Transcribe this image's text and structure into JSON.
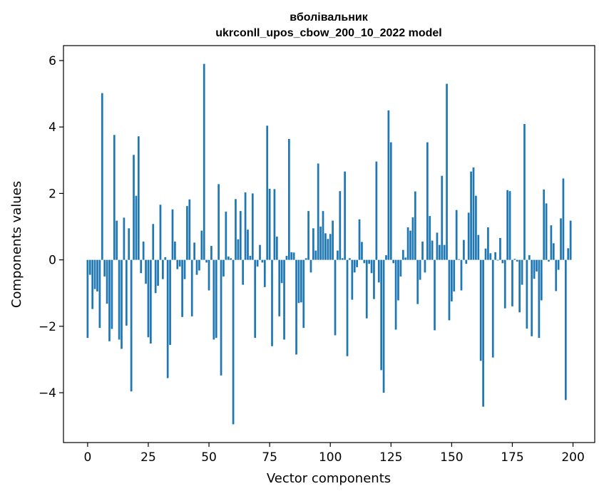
{
  "chart_data": {
    "type": "bar",
    "title": "вболівальник",
    "subtitle": "ukrconll_upos_cbow_200_10_2022 model",
    "xlabel": "Vector components",
    "ylabel": "Components values",
    "xlim": [
      -9.95,
      208.95
    ],
    "ylim": [
      -5.5,
      6.45
    ],
    "xticks": [
      0,
      25,
      50,
      75,
      100,
      125,
      150,
      175,
      200
    ],
    "xtick_labels": [
      "0",
      "25",
      "50",
      "75",
      "100",
      "125",
      "150",
      "175",
      "200"
    ],
    "yticks": [
      -4,
      -2,
      0,
      2,
      4,
      6
    ],
    "ytick_labels": [
      "−4",
      "−2",
      "0",
      "2",
      "4",
      "6"
    ],
    "grid": false,
    "bar_color": "#1f77b4",
    "x": [
      0,
      1,
      2,
      3,
      4,
      5,
      6,
      7,
      8,
      9,
      10,
      11,
      12,
      13,
      14,
      15,
      16,
      17,
      18,
      19,
      20,
      21,
      22,
      23,
      24,
      25,
      26,
      27,
      28,
      29,
      30,
      31,
      32,
      33,
      34,
      35,
      36,
      37,
      38,
      39,
      40,
      41,
      42,
      43,
      44,
      45,
      46,
      47,
      48,
      49,
      50,
      51,
      52,
      53,
      54,
      55,
      56,
      57,
      58,
      59,
      60,
      61,
      62,
      63,
      64,
      65,
      66,
      67,
      68,
      69,
      70,
      71,
      72,
      73,
      74,
      75,
      76,
      77,
      78,
      79,
      80,
      81,
      82,
      83,
      84,
      85,
      86,
      87,
      88,
      89,
      90,
      91,
      92,
      93,
      94,
      95,
      96,
      97,
      98,
      99,
      100,
      101,
      102,
      103,
      104,
      105,
      106,
      107,
      108,
      109,
      110,
      111,
      112,
      113,
      114,
      115,
      116,
      117,
      118,
      119,
      120,
      121,
      122,
      123,
      124,
      125,
      126,
      127,
      128,
      129,
      130,
      131,
      132,
      133,
      134,
      135,
      136,
      137,
      138,
      139,
      140,
      141,
      142,
      143,
      144,
      145,
      146,
      147,
      148,
      149,
      150,
      151,
      152,
      153,
      154,
      155,
      156,
      157,
      158,
      159,
      160,
      161,
      162,
      163,
      164,
      165,
      166,
      167,
      168,
      169,
      170,
      171,
      172,
      173,
      174,
      175,
      176,
      177,
      178,
      179,
      180,
      181,
      182,
      183,
      184,
      185,
      186,
      187,
      188,
      189,
      190,
      191,
      192,
      193,
      194,
      195,
      196,
      197,
      198,
      199
    ],
    "values": [
      -2.35,
      -0.45,
      -1.48,
      -0.88,
      -0.95,
      -2.05,
      5.02,
      -0.5,
      -1.32,
      -2.45,
      -2.08,
      3.76,
      1.18,
      -2.4,
      -2.68,
      1.27,
      -1.98,
      0.95,
      -3.96,
      3.16,
      1.93,
      3.72,
      -0.4,
      0.55,
      -0.72,
      -2.33,
      -2.52,
      1.08,
      -1.0,
      -0.78,
      1.66,
      -0.58,
      0.08,
      -3.56,
      -2.56,
      1.52,
      0.55,
      -0.28,
      -0.2,
      -1.72,
      -0.58,
      1.62,
      1.82,
      -1.7,
      0.52,
      -0.45,
      -0.32,
      0.88,
      5.9,
      -0.08,
      -0.92,
      0.42,
      -2.4,
      -2.35,
      2.28,
      -3.48,
      -0.5,
      1.45,
      0.1,
      0.05,
      -4.95,
      1.83,
      0.62,
      1.47,
      -0.75,
      2.03,
      0.91,
      0.12,
      2.0,
      -2.35,
      -0.2,
      0.45,
      -0.08,
      -0.82,
      4.04,
      2.14,
      -2.6,
      2.13,
      0.7,
      -1.7,
      -0.7,
      -2.4,
      0.12,
      3.64,
      0.23,
      0.22,
      -2.85,
      -1.3,
      -1.28,
      -2.05,
      0.05,
      1.47,
      -0.38,
      0.95,
      0.28,
      2.9,
      1.0,
      1.47,
      0.8,
      0.63,
      0.78,
      1.18,
      -2.27,
      0.28,
      2.07,
      0.05,
      2.66,
      -2.9,
      0.05,
      -1.2,
      -0.38,
      -0.22,
      1.22,
      0.54,
      -0.1,
      -1.76,
      -0.12,
      -0.4,
      -1.18,
      2.96,
      -0.68,
      -3.32,
      -4.0,
      0.14,
      4.5,
      3.54,
      -0.1,
      -2.1,
      -1.22,
      -0.5,
      0.3,
      0.07,
      0.98,
      0.88,
      1.28,
      2.06,
      -1.33,
      -0.6,
      0.55,
      -0.38,
      3.54,
      1.32,
      0.58,
      -2.12,
      0.82,
      0.45,
      2.53,
      0.45,
      5.3,
      -1.82,
      -1.25,
      -0.95,
      1.5,
      0.02,
      -0.92,
      0.6,
      -0.12,
      1.42,
      2.66,
      2.78,
      1.93,
      0.75,
      -3.04,
      -4.42,
      0.34,
      0.98,
      0.2,
      -2.94,
      0.23,
      -0.02,
      0.66,
      -0.1,
      -1.46,
      2.1,
      2.07,
      -1.4,
      0.03,
      -0.05,
      -1.58,
      -0.75,
      4.09,
      -2.07,
      0.14,
      -2.3,
      -0.57,
      -0.35,
      -2.35,
      -1.22,
      2.12,
      1.7,
      -0.05,
      1.04,
      0.5,
      -0.94,
      -0.3,
      1.25,
      2.45,
      -4.22,
      0.35,
      1.18
    ]
  }
}
